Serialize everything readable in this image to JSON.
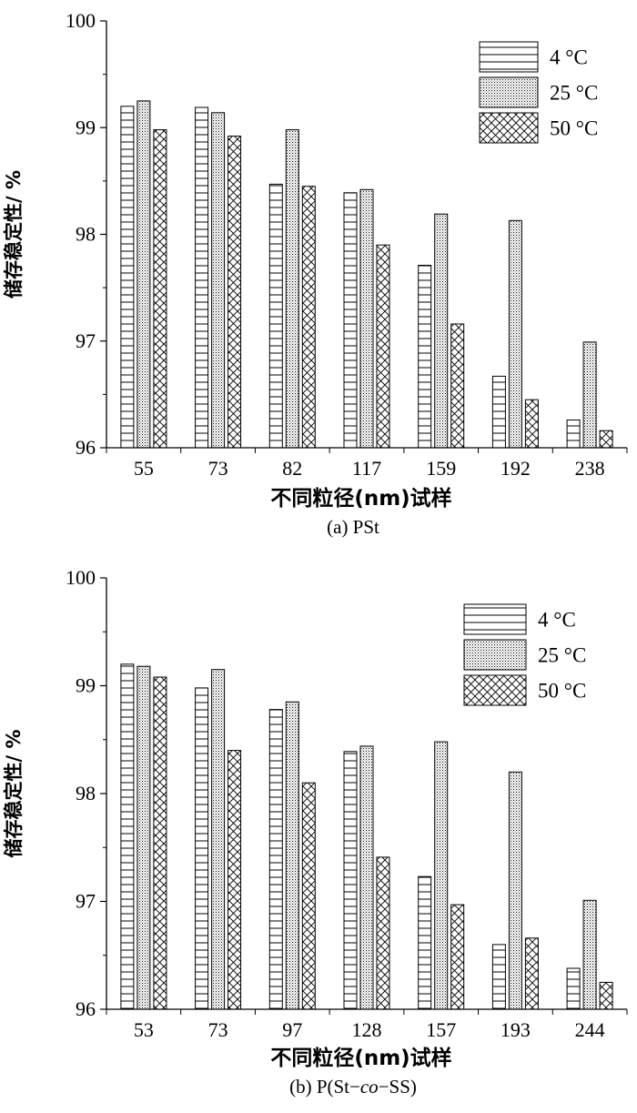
{
  "chart_data": [
    {
      "type": "bar",
      "caption": "(a) PSt",
      "xlabel": "不同粒径(nm)试样",
      "ylabel": "储存稳定性/ %",
      "ylim": [
        96,
        100
      ],
      "yticks": [
        "96",
        "97",
        "98",
        "99",
        "100"
      ],
      "categories": [
        "55",
        "73",
        "82",
        "117",
        "159",
        "192",
        "238"
      ],
      "legend_position": "top-right",
      "series": [
        {
          "name": "4 °C",
          "pattern": "hlines",
          "values": [
            99.2,
            99.19,
            98.47,
            98.39,
            97.71,
            96.67,
            96.26
          ]
        },
        {
          "name": "25 °C",
          "pattern": "dots",
          "values": [
            99.25,
            99.14,
            98.98,
            98.42,
            98.19,
            98.13,
            96.99
          ]
        },
        {
          "name": "50 °C",
          "pattern": "crosshatch",
          "values": [
            98.98,
            98.92,
            98.45,
            97.9,
            97.16,
            96.45,
            96.16
          ]
        }
      ]
    },
    {
      "type": "bar",
      "caption": "(b) P(St−co−SS)",
      "caption_parts": [
        "(b) P(St−",
        "co",
        "−SS)"
      ],
      "xlabel": "不同粒径(nm)试样",
      "ylabel": "储存稳定性/ %",
      "ylim": [
        96,
        100
      ],
      "yticks": [
        "96",
        "97",
        "98",
        "99",
        "100"
      ],
      "categories": [
        "53",
        "73",
        "97",
        "128",
        "157",
        "193",
        "244"
      ],
      "legend_position": "top-right",
      "series": [
        {
          "name": "4 °C",
          "pattern": "hlines",
          "values": [
            99.2,
            98.98,
            98.78,
            98.39,
            97.23,
            96.6,
            96.38
          ]
        },
        {
          "name": "25 °C",
          "pattern": "dots",
          "values": [
            99.18,
            99.15,
            98.85,
            98.44,
            98.48,
            98.2,
            97.01
          ]
        },
        {
          "name": "50 °C",
          "pattern": "crosshatch",
          "values": [
            99.08,
            98.4,
            98.1,
            97.41,
            96.97,
            96.66,
            96.25
          ]
        }
      ]
    }
  ]
}
